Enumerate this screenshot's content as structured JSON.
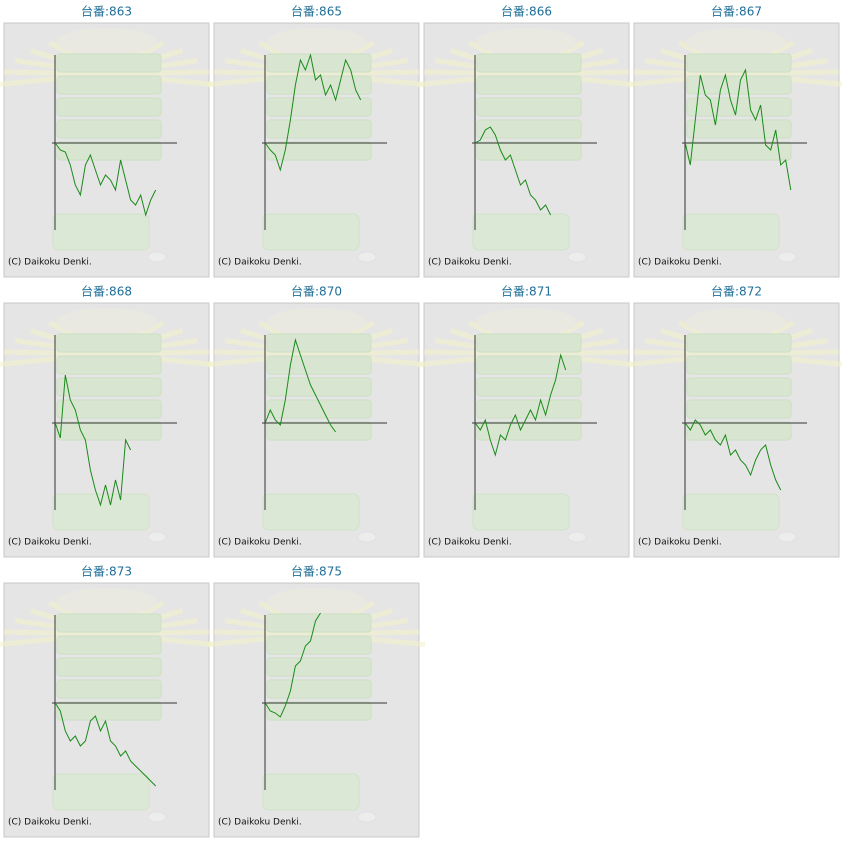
{
  "chart_data": [
    {
      "type": "line",
      "title": "台番:863",
      "annotation": "(C) Daikoku Denki.",
      "color": "#1a8a1a",
      "xlim": [
        -10,
        30.4
      ],
      "ylim": [
        -133,
        119
      ],
      "values": [
        0,
        -7,
        -9,
        -22,
        -42,
        -52,
        -22,
        -12,
        -27,
        -42,
        -32,
        -37,
        -47,
        -17,
        -37,
        -57,
        -62,
        -52,
        -72,
        -57,
        -47
      ]
    },
    {
      "type": "line",
      "title": "台番:865",
      "annotation": "(C) Daikoku Denki.",
      "color": "#1a8a1a",
      "xlim": [
        -10,
        30.4
      ],
      "ylim": [
        -133,
        119
      ],
      "values": [
        0,
        -7,
        -12,
        -27,
        -7,
        23,
        58,
        83,
        73,
        88,
        63,
        68,
        48,
        58,
        43,
        63,
        83,
        73,
        53,
        43
      ]
    },
    {
      "type": "line",
      "title": "台番:866",
      "annotation": "(C) Daikoku Denki.",
      "color": "#1a8a1a",
      "xlim": [
        -10,
        30.4
      ],
      "ylim": [
        -133,
        119
      ],
      "values": [
        0,
        3,
        13,
        16,
        8,
        -7,
        -17,
        -12,
        -27,
        -42,
        -37,
        -52,
        -57,
        -67,
        -62,
        -72
      ]
    },
    {
      "type": "line",
      "title": "台番:867",
      "annotation": "(C) Daikoku Denki.",
      "color": "#1a8a1a",
      "xlim": [
        -10,
        30.4
      ],
      "ylim": [
        -133,
        119
      ],
      "values": [
        0,
        -22,
        23,
        68,
        48,
        43,
        18,
        53,
        68,
        43,
        28,
        63,
        73,
        33,
        23,
        38,
        -2,
        -7,
        13,
        -22,
        -17,
        -47
      ]
    },
    {
      "type": "line",
      "title": "台番:868",
      "annotation": "(C) Daikoku Denki.",
      "color": "#1a8a1a",
      "xlim": [
        -10,
        30.4
      ],
      "ylim": [
        -133,
        119
      ],
      "values": [
        0,
        -15,
        48,
        23,
        13,
        -7,
        -17,
        -47,
        -67,
        -82,
        -62,
        -82,
        -57,
        -77,
        -17,
        -27
      ]
    },
    {
      "type": "line",
      "title": "台番:870",
      "annotation": "(C) Daikoku Denki.",
      "color": "#1a8a1a",
      "xlim": [
        -10,
        30.4
      ],
      "ylim": [
        -133,
        119
      ],
      "values": [
        0,
        13,
        3,
        -2,
        23,
        58,
        83,
        68,
        53,
        38,
        28,
        18,
        8,
        -2,
        -9
      ]
    },
    {
      "type": "line",
      "title": "台番:871",
      "annotation": "(C) Daikoku Denki.",
      "color": "#1a8a1a",
      "xlim": [
        -10,
        30.4
      ],
      "ylim": [
        -133,
        119
      ],
      "values": [
        0,
        -7,
        3,
        -17,
        -32,
        -12,
        -17,
        -2,
        8,
        -7,
        3,
        13,
        3,
        23,
        8,
        28,
        43,
        68,
        53
      ]
    },
    {
      "type": "line",
      "title": "台番:872",
      "annotation": "(C) Daikoku Denki.",
      "color": "#1a8a1a",
      "xlim": [
        -10,
        30.4
      ],
      "ylim": [
        -133,
        119
      ],
      "values": [
        0,
        -7,
        3,
        -2,
        -12,
        -7,
        -17,
        -22,
        -12,
        -32,
        -27,
        -37,
        -42,
        -52,
        -37,
        -27,
        -22,
        -42,
        -57,
        -67
      ]
    },
    {
      "type": "line",
      "title": "台番:873",
      "annotation": "(C) Daikoku Denki.",
      "color": "#1a8a1a",
      "xlim": [
        -10,
        30.4
      ],
      "ylim": [
        -133,
        119
      ],
      "values": [
        0,
        -8,
        -28,
        -38,
        -33,
        -43,
        -38,
        -18,
        -13,
        -28,
        -18,
        -38,
        -43,
        -53,
        -48,
        -58,
        -63,
        -68,
        -73,
        -78,
        -83
      ]
    },
    {
      "type": "line",
      "title": "台番:875",
      "annotation": "(C) Daikoku Denki.",
      "color": "#1a8a1a",
      "xlim": [
        -10,
        30.4
      ],
      "ylim": [
        -133,
        119
      ],
      "values": [
        0,
        -8,
        -10,
        -14,
        -3,
        12,
        37,
        42,
        57,
        62,
        82,
        90
      ]
    }
  ]
}
